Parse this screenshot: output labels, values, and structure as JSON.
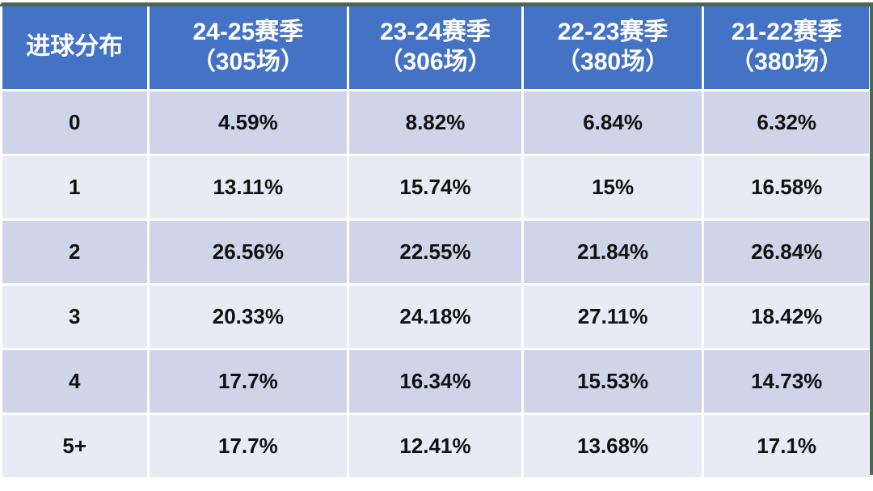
{
  "table": {
    "title": "进球分布 percentage table by season",
    "header": {
      "corner": "进球分布",
      "columns": [
        {
          "season": "24-25赛季",
          "games": "（305场）"
        },
        {
          "season": "23-24赛季",
          "games": "（306场）"
        },
        {
          "season": "22-23赛季",
          "games": "（380场）"
        },
        {
          "season": "21-22赛季",
          "games": "（380场）"
        }
      ]
    },
    "rows": [
      {
        "label": "0",
        "values": [
          "4.59%",
          "8.82%",
          "6.84%",
          "6.32%"
        ]
      },
      {
        "label": "1",
        "values": [
          "13.11%",
          "15.74%",
          "15%",
          "16.58%"
        ]
      },
      {
        "label": "2",
        "values": [
          "26.56%",
          "22.55%",
          "21.84%",
          "26.84%"
        ]
      },
      {
        "label": "3",
        "values": [
          "20.33%",
          "24.18%",
          "27.11%",
          "18.42%"
        ]
      },
      {
        "label": "4",
        "values": [
          "17.7%",
          "16.34%",
          "15.53%",
          "14.73%"
        ]
      },
      {
        "label": "5+",
        "values": [
          "17.7%",
          "12.41%",
          "13.68%",
          "17.1%"
        ]
      }
    ]
  },
  "colors": {
    "header_bg": "#4472c4",
    "header_text": "#ffffff",
    "row_band_dark": "#cfd4e8",
    "row_band_light": "#e9ebf4",
    "cell_gutter": "#ffffff",
    "edge_border": "#4d6653",
    "body_text": "#111111"
  },
  "chart_data": {
    "type": "table",
    "title": "进球分布",
    "columns": [
      "进球分布",
      "24-25赛季（305场）",
      "23-24赛季（306场）",
      "22-23赛季（380场）",
      "21-22赛季（380场）"
    ],
    "categories": [
      "0",
      "1",
      "2",
      "3",
      "4",
      "5+"
    ],
    "series": [
      {
        "name": "24-25赛季（305场）",
        "values": [
          4.59,
          13.11,
          26.56,
          20.33,
          17.7,
          17.7
        ]
      },
      {
        "name": "23-24赛季（306场）",
        "values": [
          8.82,
          15.74,
          22.55,
          24.18,
          16.34,
          12.41
        ]
      },
      {
        "name": "22-23赛季（380场）",
        "values": [
          6.84,
          15.0,
          21.84,
          27.11,
          15.53,
          13.68
        ]
      },
      {
        "name": "21-22赛季（380场）",
        "values": [
          6.32,
          16.58,
          26.84,
          18.42,
          14.73,
          17.1
        ]
      }
    ],
    "unit": "%"
  }
}
